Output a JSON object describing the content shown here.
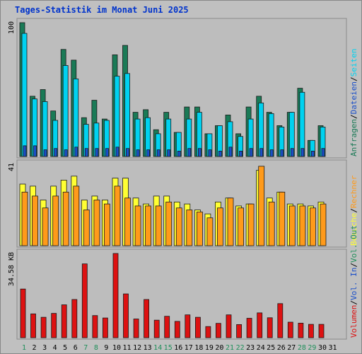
{
  "title": "Tages-Statistik im Monat Juni 2025",
  "colors": {
    "background": "#c0c0c0",
    "title": "#0033cc",
    "anfragen": "#1a7a56",
    "dateien": "#00d2f0",
    "seiten": "#1a4fc9",
    "besuche": "#ffff33",
    "rechner": "#ff9a1a",
    "volumen": "#dd1111",
    "weekend_label": "#1f8f5a"
  },
  "chart_data": [
    {
      "type": "bar",
      "panel": "hits",
      "y_max_label": "100",
      "ylim": [
        0,
        100
      ],
      "categories": [
        "1",
        "2",
        "3",
        "4",
        "5",
        "6",
        "7",
        "8",
        "9",
        "10",
        "11",
        "12",
        "13",
        "14",
        "15",
        "16",
        "17",
        "18",
        "19",
        "20",
        "21",
        "22",
        "23",
        "24",
        "25",
        "26",
        "27",
        "28",
        "29",
        "30"
      ],
      "weekend_days": [
        "1",
        "7",
        "8",
        "14",
        "15",
        "21",
        "22",
        "28",
        "29"
      ],
      "legend": [
        "Anfragen",
        "Dateien",
        "Seiten"
      ],
      "series": [
        {
          "name": "Anfragen",
          "values": [
            100,
            45,
            50,
            34,
            80,
            72,
            29,
            42,
            28,
            76,
            83,
            33,
            35,
            20,
            33,
            18,
            37,
            37,
            17,
            23,
            31,
            17,
            37,
            45,
            33,
            23,
            33,
            51,
            12,
            23
          ]
        },
        {
          "name": "Dateien",
          "values": [
            92,
            43,
            41,
            27,
            68,
            58,
            24,
            25,
            27,
            60,
            62,
            28,
            29,
            17,
            28,
            18,
            28,
            33,
            17,
            23,
            26,
            15,
            28,
            40,
            32,
            22,
            33,
            48,
            12,
            22
          ]
        },
        {
          "name": "Seiten",
          "values": [
            8,
            8,
            5,
            6,
            5,
            7,
            6,
            6,
            6,
            7,
            6,
            5,
            5,
            5,
            5,
            4,
            6,
            6,
            5,
            4,
            7,
            4,
            6,
            6,
            5,
            5,
            6,
            6,
            4,
            6
          ]
        }
      ]
    },
    {
      "type": "bar",
      "panel": "visits",
      "y_max_label": "41",
      "ylim": [
        0,
        41
      ],
      "categories": [
        "1",
        "2",
        "3",
        "4",
        "5",
        "6",
        "7",
        "8",
        "9",
        "10",
        "11",
        "12",
        "13",
        "14",
        "15",
        "16",
        "17",
        "18",
        "19",
        "20",
        "21",
        "22",
        "23",
        "24",
        "25",
        "26",
        "27",
        "28",
        "29",
        "30"
      ],
      "legend": [
        "Besuche",
        "Rechner"
      ],
      "series": [
        {
          "name": "Besuche",
          "values": [
            31,
            30,
            23,
            30,
            33,
            35,
            23,
            25,
            23,
            34,
            34,
            24,
            21,
            25,
            25,
            22,
            21,
            18,
            16,
            22,
            24,
            20,
            21,
            38,
            24,
            27,
            21,
            21,
            20,
            22
          ]
        },
        {
          "name": "Rechner",
          "values": [
            27,
            25,
            19,
            25,
            27,
            30,
            18,
            23,
            21,
            30,
            24,
            20,
            20,
            20,
            22,
            19,
            18,
            17,
            14,
            19,
            24,
            19,
            21,
            40,
            22,
            27,
            20,
            20,
            19,
            21
          ]
        }
      ]
    },
    {
      "type": "bar",
      "panel": "volume",
      "y_max_label": "34.58 KB",
      "ylim": [
        0,
        34.58
      ],
      "categories": [
        "1",
        "2",
        "3",
        "4",
        "5",
        "6",
        "7",
        "8",
        "9",
        "10",
        "11",
        "12",
        "13",
        "14",
        "15",
        "16",
        "17",
        "18",
        "19",
        "20",
        "21",
        "22",
        "23",
        "24",
        "25",
        "26",
        "27",
        "28",
        "29",
        "30"
      ],
      "legend": [
        "Volumen",
        "Vol. In",
        "Vol. Out"
      ],
      "series": [
        {
          "name": "Volumen",
          "values": [
            20,
            9.8,
            8.4,
            10,
            13.5,
            15.7,
            30.3,
            9.1,
            8.1,
            34.58,
            18,
            7.7,
            15.7,
            7.2,
            8.8,
            6.7,
            9.4,
            8.4,
            4.6,
            5.9,
            9.4,
            5.4,
            8,
            10.2,
            8.2,
            14,
            6.4,
            6,
            5.5,
            5.5
          ]
        }
      ]
    }
  ],
  "x_axis_labels": [
    "1",
    "2",
    "3",
    "4",
    "5",
    "6",
    "7",
    "8",
    "9",
    "10",
    "11",
    "12",
    "13",
    "14",
    "15",
    "16",
    "17",
    "18",
    "19",
    "20",
    "21",
    "22",
    "23",
    "24",
    "25",
    "26",
    "27",
    "28",
    "29",
    "30",
    "31"
  ]
}
